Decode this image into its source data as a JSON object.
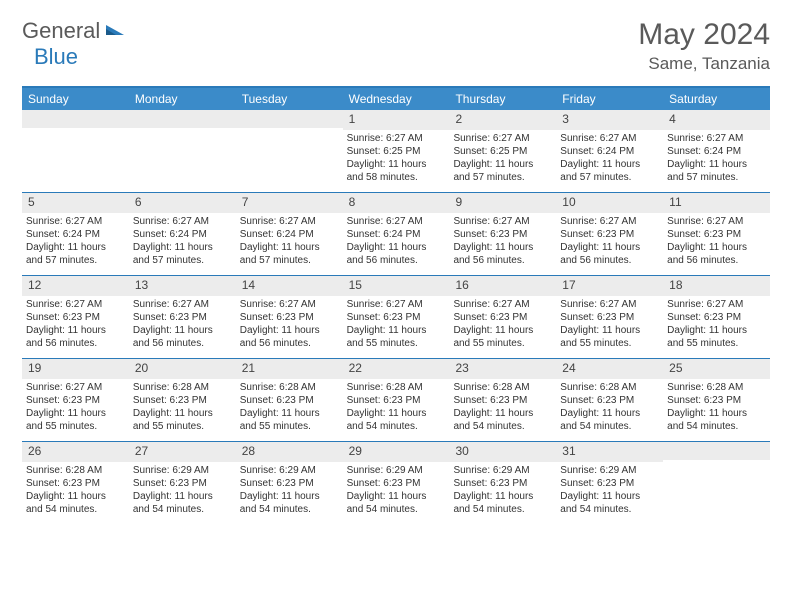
{
  "logo": {
    "text1": "General",
    "text2": "Blue"
  },
  "title": "May 2024",
  "location": "Same, Tanzania",
  "weekdays": [
    "Sunday",
    "Monday",
    "Tuesday",
    "Wednesday",
    "Thursday",
    "Friday",
    "Saturday"
  ],
  "colors": {
    "header_bar": "#3b8bc9",
    "border": "#2a7ab9",
    "daynum_bg": "#ececec",
    "text": "#333333",
    "logo_gray": "#5a5a5a",
    "logo_blue": "#2a7ab9"
  },
  "weeks": [
    [
      {
        "n": "",
        "sunrise": "",
        "sunset": "",
        "daylight": ""
      },
      {
        "n": "",
        "sunrise": "",
        "sunset": "",
        "daylight": ""
      },
      {
        "n": "",
        "sunrise": "",
        "sunset": "",
        "daylight": ""
      },
      {
        "n": "1",
        "sunrise": "Sunrise: 6:27 AM",
        "sunset": "Sunset: 6:25 PM",
        "daylight": "Daylight: 11 hours and 58 minutes."
      },
      {
        "n": "2",
        "sunrise": "Sunrise: 6:27 AM",
        "sunset": "Sunset: 6:25 PM",
        "daylight": "Daylight: 11 hours and 57 minutes."
      },
      {
        "n": "3",
        "sunrise": "Sunrise: 6:27 AM",
        "sunset": "Sunset: 6:24 PM",
        "daylight": "Daylight: 11 hours and 57 minutes."
      },
      {
        "n": "4",
        "sunrise": "Sunrise: 6:27 AM",
        "sunset": "Sunset: 6:24 PM",
        "daylight": "Daylight: 11 hours and 57 minutes."
      }
    ],
    [
      {
        "n": "5",
        "sunrise": "Sunrise: 6:27 AM",
        "sunset": "Sunset: 6:24 PM",
        "daylight": "Daylight: 11 hours and 57 minutes."
      },
      {
        "n": "6",
        "sunrise": "Sunrise: 6:27 AM",
        "sunset": "Sunset: 6:24 PM",
        "daylight": "Daylight: 11 hours and 57 minutes."
      },
      {
        "n": "7",
        "sunrise": "Sunrise: 6:27 AM",
        "sunset": "Sunset: 6:24 PM",
        "daylight": "Daylight: 11 hours and 57 minutes."
      },
      {
        "n": "8",
        "sunrise": "Sunrise: 6:27 AM",
        "sunset": "Sunset: 6:24 PM",
        "daylight": "Daylight: 11 hours and 56 minutes."
      },
      {
        "n": "9",
        "sunrise": "Sunrise: 6:27 AM",
        "sunset": "Sunset: 6:23 PM",
        "daylight": "Daylight: 11 hours and 56 minutes."
      },
      {
        "n": "10",
        "sunrise": "Sunrise: 6:27 AM",
        "sunset": "Sunset: 6:23 PM",
        "daylight": "Daylight: 11 hours and 56 minutes."
      },
      {
        "n": "11",
        "sunrise": "Sunrise: 6:27 AM",
        "sunset": "Sunset: 6:23 PM",
        "daylight": "Daylight: 11 hours and 56 minutes."
      }
    ],
    [
      {
        "n": "12",
        "sunrise": "Sunrise: 6:27 AM",
        "sunset": "Sunset: 6:23 PM",
        "daylight": "Daylight: 11 hours and 56 minutes."
      },
      {
        "n": "13",
        "sunrise": "Sunrise: 6:27 AM",
        "sunset": "Sunset: 6:23 PM",
        "daylight": "Daylight: 11 hours and 56 minutes."
      },
      {
        "n": "14",
        "sunrise": "Sunrise: 6:27 AM",
        "sunset": "Sunset: 6:23 PM",
        "daylight": "Daylight: 11 hours and 56 minutes."
      },
      {
        "n": "15",
        "sunrise": "Sunrise: 6:27 AM",
        "sunset": "Sunset: 6:23 PM",
        "daylight": "Daylight: 11 hours and 55 minutes."
      },
      {
        "n": "16",
        "sunrise": "Sunrise: 6:27 AM",
        "sunset": "Sunset: 6:23 PM",
        "daylight": "Daylight: 11 hours and 55 minutes."
      },
      {
        "n": "17",
        "sunrise": "Sunrise: 6:27 AM",
        "sunset": "Sunset: 6:23 PM",
        "daylight": "Daylight: 11 hours and 55 minutes."
      },
      {
        "n": "18",
        "sunrise": "Sunrise: 6:27 AM",
        "sunset": "Sunset: 6:23 PM",
        "daylight": "Daylight: 11 hours and 55 minutes."
      }
    ],
    [
      {
        "n": "19",
        "sunrise": "Sunrise: 6:27 AM",
        "sunset": "Sunset: 6:23 PM",
        "daylight": "Daylight: 11 hours and 55 minutes."
      },
      {
        "n": "20",
        "sunrise": "Sunrise: 6:28 AM",
        "sunset": "Sunset: 6:23 PM",
        "daylight": "Daylight: 11 hours and 55 minutes."
      },
      {
        "n": "21",
        "sunrise": "Sunrise: 6:28 AM",
        "sunset": "Sunset: 6:23 PM",
        "daylight": "Daylight: 11 hours and 55 minutes."
      },
      {
        "n": "22",
        "sunrise": "Sunrise: 6:28 AM",
        "sunset": "Sunset: 6:23 PM",
        "daylight": "Daylight: 11 hours and 54 minutes."
      },
      {
        "n": "23",
        "sunrise": "Sunrise: 6:28 AM",
        "sunset": "Sunset: 6:23 PM",
        "daylight": "Daylight: 11 hours and 54 minutes."
      },
      {
        "n": "24",
        "sunrise": "Sunrise: 6:28 AM",
        "sunset": "Sunset: 6:23 PM",
        "daylight": "Daylight: 11 hours and 54 minutes."
      },
      {
        "n": "25",
        "sunrise": "Sunrise: 6:28 AM",
        "sunset": "Sunset: 6:23 PM",
        "daylight": "Daylight: 11 hours and 54 minutes."
      }
    ],
    [
      {
        "n": "26",
        "sunrise": "Sunrise: 6:28 AM",
        "sunset": "Sunset: 6:23 PM",
        "daylight": "Daylight: 11 hours and 54 minutes."
      },
      {
        "n": "27",
        "sunrise": "Sunrise: 6:29 AM",
        "sunset": "Sunset: 6:23 PM",
        "daylight": "Daylight: 11 hours and 54 minutes."
      },
      {
        "n": "28",
        "sunrise": "Sunrise: 6:29 AM",
        "sunset": "Sunset: 6:23 PM",
        "daylight": "Daylight: 11 hours and 54 minutes."
      },
      {
        "n": "29",
        "sunrise": "Sunrise: 6:29 AM",
        "sunset": "Sunset: 6:23 PM",
        "daylight": "Daylight: 11 hours and 54 minutes."
      },
      {
        "n": "30",
        "sunrise": "Sunrise: 6:29 AM",
        "sunset": "Sunset: 6:23 PM",
        "daylight": "Daylight: 11 hours and 54 minutes."
      },
      {
        "n": "31",
        "sunrise": "Sunrise: 6:29 AM",
        "sunset": "Sunset: 6:23 PM",
        "daylight": "Daylight: 11 hours and 54 minutes."
      },
      {
        "n": "",
        "sunrise": "",
        "sunset": "",
        "daylight": ""
      }
    ]
  ]
}
